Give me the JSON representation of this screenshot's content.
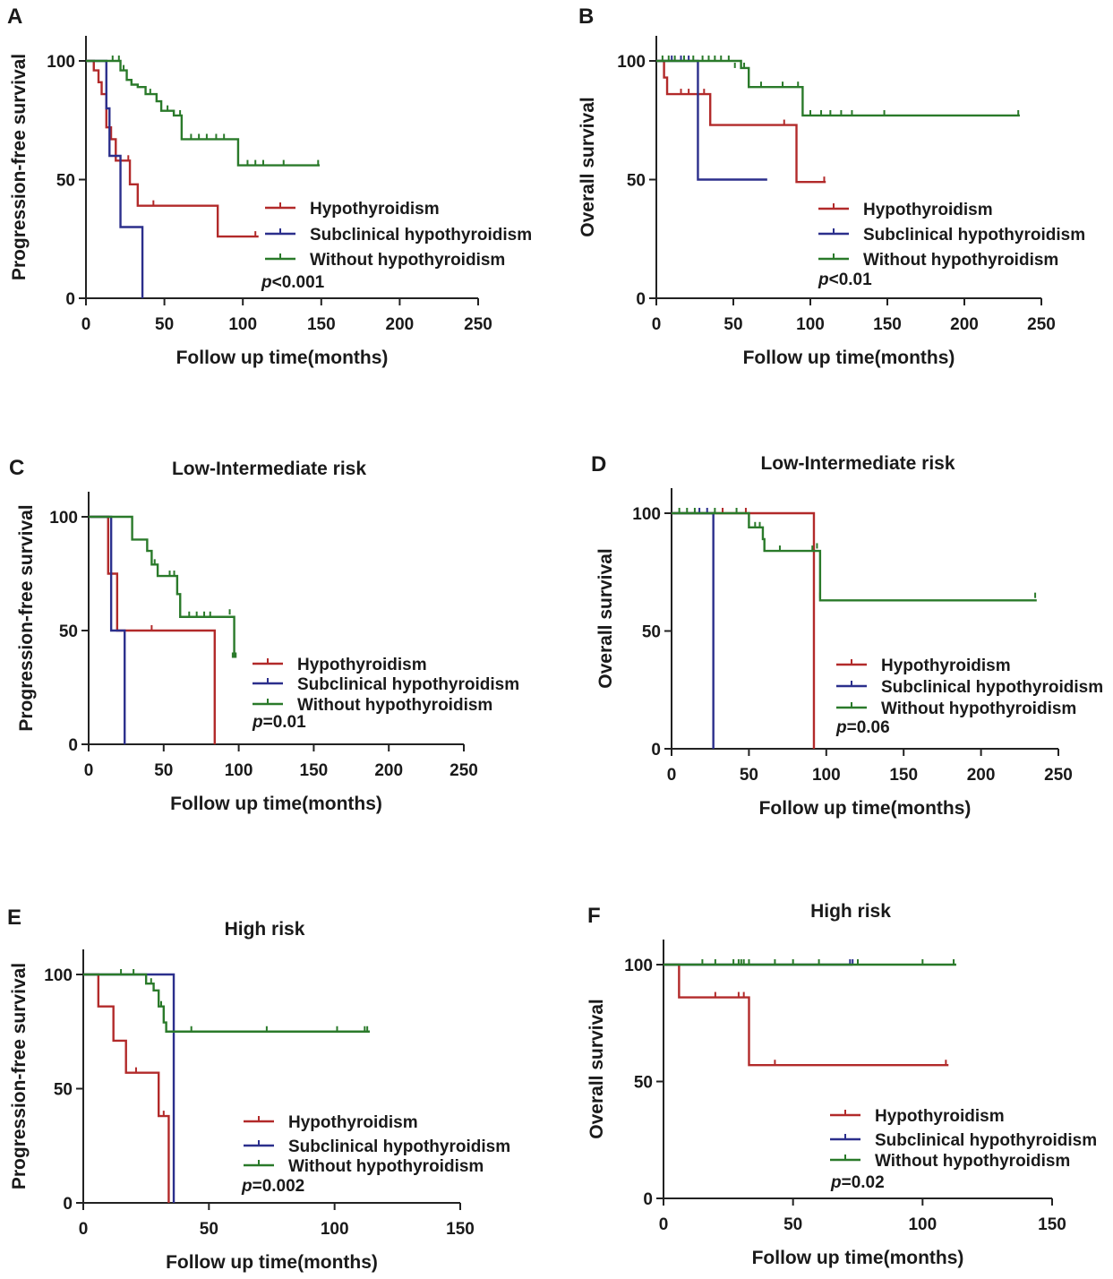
{
  "colors": {
    "hypothyroidism": "#b22a2a",
    "subclinical": "#2b2f8c",
    "without": "#2a7a2a",
    "axis": "#222222"
  },
  "chart_data": [
    {
      "panel_letter": "A",
      "type": "line",
      "title": "",
      "xlabel": "Follow up time(months)",
      "ylabel": "Progression-free survival",
      "xlim": [
        0,
        250
      ],
      "ylim": [
        0,
        100
      ],
      "xticks": [
        0,
        50,
        100,
        150,
        200,
        250
      ],
      "yticks": [
        0,
        50,
        100
      ],
      "p_text": "<0.001",
      "series": [
        {
          "name": "Hypothyroidism",
          "key": "hypothyroidism",
          "steps": [
            [
              0,
              100
            ],
            [
              5,
              96
            ],
            [
              8,
              91
            ],
            [
              10,
              86
            ],
            [
              13,
              72
            ],
            [
              16,
              67
            ],
            [
              19,
              58
            ],
            [
              28,
              48
            ],
            [
              33,
              39
            ],
            [
              84,
              26
            ],
            [
              110,
              26
            ]
          ],
          "censors": [
            [
              22,
              58
            ],
            [
              27,
              58
            ],
            [
              43,
              39
            ],
            [
              108,
              26
            ]
          ]
        },
        {
          "name": "Subclinical hypothyroidism",
          "key": "subclinical",
          "steps": [
            [
              0,
              100
            ],
            [
              11,
              100
            ],
            [
              13,
              80
            ],
            [
              15,
              60
            ],
            [
              22,
              30
            ],
            [
              36,
              0
            ]
          ],
          "censors": []
        },
        {
          "name": "Without hypothyroidism",
          "key": "without",
          "steps": [
            [
              0,
              100
            ],
            [
              12,
              100
            ],
            [
              19,
              100
            ],
            [
              22,
              96
            ],
            [
              26,
              92
            ],
            [
              29,
              90
            ],
            [
              33,
              89
            ],
            [
              38,
              86
            ],
            [
              45,
              83
            ],
            [
              48,
              79
            ],
            [
              56,
              77
            ],
            [
              61,
              67
            ],
            [
              97,
              56
            ],
            [
              149,
              56
            ]
          ],
          "censors": [
            [
              17,
              100
            ],
            [
              21,
              100
            ],
            [
              24,
              96
            ],
            [
              41,
              86
            ],
            [
              52,
              79
            ],
            [
              60,
              77
            ],
            [
              67,
              67
            ],
            [
              72,
              67
            ],
            [
              77,
              67
            ],
            [
              83,
              67
            ],
            [
              88,
              67
            ],
            [
              103,
              56
            ],
            [
              108,
              56
            ],
            [
              113,
              56
            ],
            [
              126,
              56
            ],
            [
              148,
              56
            ]
          ]
        }
      ]
    },
    {
      "panel_letter": "B",
      "type": "line",
      "title": "",
      "xlabel": "Follow up time(months)",
      "ylabel": "Overall survival",
      "xlim": [
        0,
        250
      ],
      "ylim": [
        0,
        100
      ],
      "xticks": [
        0,
        50,
        100,
        150,
        200,
        250
      ],
      "yticks": [
        0,
        50,
        100
      ],
      "p_text": "<0.01",
      "series": [
        {
          "name": "Hypothyroidism",
          "key": "hypothyroidism",
          "steps": [
            [
              0,
              100
            ],
            [
              5,
              93
            ],
            [
              7,
              86
            ],
            [
              35,
              73
            ],
            [
              91,
              49
            ],
            [
              110,
              49
            ]
          ],
          "censors": [
            [
              16,
              86
            ],
            [
              21,
              86
            ],
            [
              31,
              86
            ],
            [
              83,
              73
            ],
            [
              109,
              49
            ]
          ]
        },
        {
          "name": "Subclinical hypothyroidism",
          "key": "subclinical",
          "steps": [
            [
              0,
              100
            ],
            [
              26,
              100
            ],
            [
              27,
              50
            ],
            [
              72,
              50
            ]
          ],
          "censors": [
            [
              10,
              100
            ],
            [
              16,
              100
            ],
            [
              21,
              100
            ]
          ]
        },
        {
          "name": "Without hypothyroidism",
          "key": "without",
          "steps": [
            [
              0,
              100
            ],
            [
              50,
              100
            ],
            [
              55,
              97
            ],
            [
              60,
              89
            ],
            [
              95,
              77
            ],
            [
              236,
              77
            ]
          ],
          "censors": [
            [
              4,
              100
            ],
            [
              8,
              100
            ],
            [
              12,
              100
            ],
            [
              18,
              100
            ],
            [
              24,
              100
            ],
            [
              30,
              100
            ],
            [
              34,
              100
            ],
            [
              38,
              100
            ],
            [
              42,
              100
            ],
            [
              47,
              100
            ],
            [
              51,
              97
            ],
            [
              57,
              97
            ],
            [
              68,
              89
            ],
            [
              82,
              89
            ],
            [
              92,
              89
            ],
            [
              100,
              77
            ],
            [
              107,
              77
            ],
            [
              113,
              77
            ],
            [
              120,
              77
            ],
            [
              127,
              77
            ],
            [
              148,
              77
            ],
            [
              235,
              77
            ]
          ]
        }
      ]
    },
    {
      "panel_letter": "C",
      "type": "line",
      "title": "Low-Intermediate risk",
      "xlabel": "Follow up time(months)",
      "ylabel": "Progression-free survival",
      "xlim": [
        0,
        250
      ],
      "ylim": [
        0,
        100
      ],
      "xticks": [
        0,
        50,
        100,
        150,
        200,
        250
      ],
      "yticks": [
        0,
        50,
        100
      ],
      "p_text": "=0.01",
      "series": [
        {
          "name": "Hypothyroidism",
          "key": "hypothyroidism",
          "steps": [
            [
              0,
              100
            ],
            [
              11,
              100
            ],
            [
              13,
              75
            ],
            [
              19,
              50
            ],
            [
              84,
              0
            ]
          ],
          "censors": [
            [
              42,
              50
            ]
          ]
        },
        {
          "name": "Subclinical hypothyroidism",
          "key": "subclinical",
          "steps": [
            [
              0,
              100
            ],
            [
              10,
              100
            ],
            [
              15,
              50
            ],
            [
              24,
              0
            ]
          ],
          "censors": []
        },
        {
          "name": "Without hypothyroidism",
          "key": "without",
          "steps": [
            [
              0,
              100
            ],
            [
              24,
              100
            ],
            [
              29,
              90
            ],
            [
              39,
              85
            ],
            [
              42,
              79
            ],
            [
              46,
              74
            ],
            [
              59,
              66
            ],
            [
              61,
              56
            ],
            [
              95,
              56
            ],
            [
              97,
              38
            ]
          ],
          "censors": [
            [
              44,
              79
            ],
            [
              54,
              74
            ],
            [
              57,
              74
            ],
            [
              67,
              56
            ],
            [
              72,
              56
            ],
            [
              77,
              56
            ],
            [
              81,
              56
            ],
            [
              94,
              57
            ],
            [
              96,
              38
            ],
            [
              98,
              38
            ]
          ]
        }
      ]
    },
    {
      "panel_letter": "D",
      "type": "line",
      "title": "Low-Intermediate risk",
      "xlabel": "Follow up time(months)",
      "ylabel": "Overall survival",
      "xlim": [
        0,
        250
      ],
      "ylim": [
        0,
        100
      ],
      "xticks": [
        0,
        50,
        100,
        150,
        200,
        250
      ],
      "yticks": [
        0,
        50,
        100
      ],
      "p_text": "=0.06",
      "series": [
        {
          "name": "Hypothyroidism",
          "key": "hypothyroidism",
          "steps": [
            [
              0,
              100
            ],
            [
              90,
              100
            ],
            [
              92,
              0
            ]
          ],
          "censors": [
            [
              33,
              100
            ],
            [
              48,
              100
            ]
          ]
        },
        {
          "name": "Subclinical hypothyroidism",
          "key": "subclinical",
          "steps": [
            [
              0,
              100
            ],
            [
              26,
              100
            ],
            [
              27,
              0
            ]
          ],
          "censors": [
            [
              18,
              100
            ],
            [
              23,
              100
            ]
          ]
        },
        {
          "name": "Without hypothyroidism",
          "key": "without",
          "steps": [
            [
              0,
              100
            ],
            [
              48,
              100
            ],
            [
              50,
              94
            ],
            [
              59,
              89
            ],
            [
              60,
              84
            ],
            [
              94,
              84
            ],
            [
              96,
              63
            ],
            [
              236,
              63
            ]
          ],
          "censors": [
            [
              5,
              100
            ],
            [
              10,
              100
            ],
            [
              15,
              100
            ],
            [
              28,
              100
            ],
            [
              42,
              100
            ],
            [
              54,
              94
            ],
            [
              57,
              94
            ],
            [
              70,
              84
            ],
            [
              91,
              84
            ],
            [
              94,
              85
            ],
            [
              96,
              64
            ],
            [
              235,
              64
            ]
          ]
        }
      ]
    },
    {
      "panel_letter": "E",
      "type": "line",
      "title": "High risk",
      "xlabel": "Follow up time(months)",
      "ylabel": "Progression-free survival",
      "xlim": [
        0,
        150
      ],
      "ylim": [
        0,
        100
      ],
      "xticks": [
        0,
        50,
        100,
        150
      ],
      "yticks": [
        0,
        50,
        100
      ],
      "p_text": "=0.002",
      "series": [
        {
          "name": "Hypothyroidism",
          "key": "hypothyroidism",
          "steps": [
            [
              0,
              100
            ],
            [
              6,
              86
            ],
            [
              12,
              71
            ],
            [
              17,
              57
            ],
            [
              30,
              38
            ],
            [
              33,
              38
            ],
            [
              34,
              0
            ]
          ],
          "censors": [
            [
              21,
              57
            ],
            [
              32,
              38
            ]
          ]
        },
        {
          "name": "Subclinical hypothyroidism",
          "key": "subclinical",
          "steps": [
            [
              0,
              100
            ],
            [
              35,
              100
            ],
            [
              36,
              0
            ]
          ],
          "censors": []
        },
        {
          "name": "Without hypothyroidism",
          "key": "without",
          "steps": [
            [
              0,
              100
            ],
            [
              24,
              100
            ],
            [
              25,
              96
            ],
            [
              28,
              93
            ],
            [
              30,
              86
            ],
            [
              32,
              79
            ],
            [
              33,
              75
            ],
            [
              114,
              75
            ]
          ],
          "censors": [
            [
              15,
              100
            ],
            [
              20,
              100
            ],
            [
              27,
              96
            ],
            [
              31,
              86
            ],
            [
              43,
              75
            ],
            [
              73,
              75
            ],
            [
              101,
              75
            ],
            [
              112,
              75
            ],
            [
              113,
              75
            ]
          ]
        }
      ]
    },
    {
      "panel_letter": "F",
      "type": "line",
      "title": "High risk",
      "xlabel": "Follow up time(months)",
      "ylabel": "Overall survival",
      "xlim": [
        0,
        150
      ],
      "ylim": [
        0,
        100
      ],
      "xticks": [
        0,
        50,
        100,
        150
      ],
      "yticks": [
        0,
        50,
        100
      ],
      "p_text": "=0.02",
      "series": [
        {
          "name": "Hypothyroidism",
          "key": "hypothyroidism",
          "steps": [
            [
              0,
              100
            ],
            [
              6,
              86
            ],
            [
              33,
              57
            ],
            [
              110,
              57
            ]
          ],
          "censors": [
            [
              20,
              86
            ],
            [
              29,
              86
            ],
            [
              31,
              86
            ],
            [
              43,
              57
            ],
            [
              109,
              57
            ]
          ]
        },
        {
          "name": "Subclinical hypothyroidism",
          "key": "subclinical",
          "steps": [
            [
              0,
              100
            ],
            [
              73,
              100
            ]
          ],
          "censors": [
            [
              72,
              100
            ],
            [
              73,
              100
            ]
          ]
        },
        {
          "name": "Without hypothyroidism",
          "key": "without",
          "steps": [
            [
              0,
              100
            ],
            [
              113,
              100
            ]
          ],
          "censors": [
            [
              15,
              100
            ],
            [
              20,
              100
            ],
            [
              27,
              100
            ],
            [
              29,
              100
            ],
            [
              30,
              100
            ],
            [
              31,
              100
            ],
            [
              33,
              100
            ],
            [
              43,
              100
            ],
            [
              50,
              100
            ],
            [
              60,
              100
            ],
            [
              75,
              100
            ],
            [
              100,
              100
            ],
            [
              112,
              100
            ]
          ]
        }
      ]
    }
  ]
}
